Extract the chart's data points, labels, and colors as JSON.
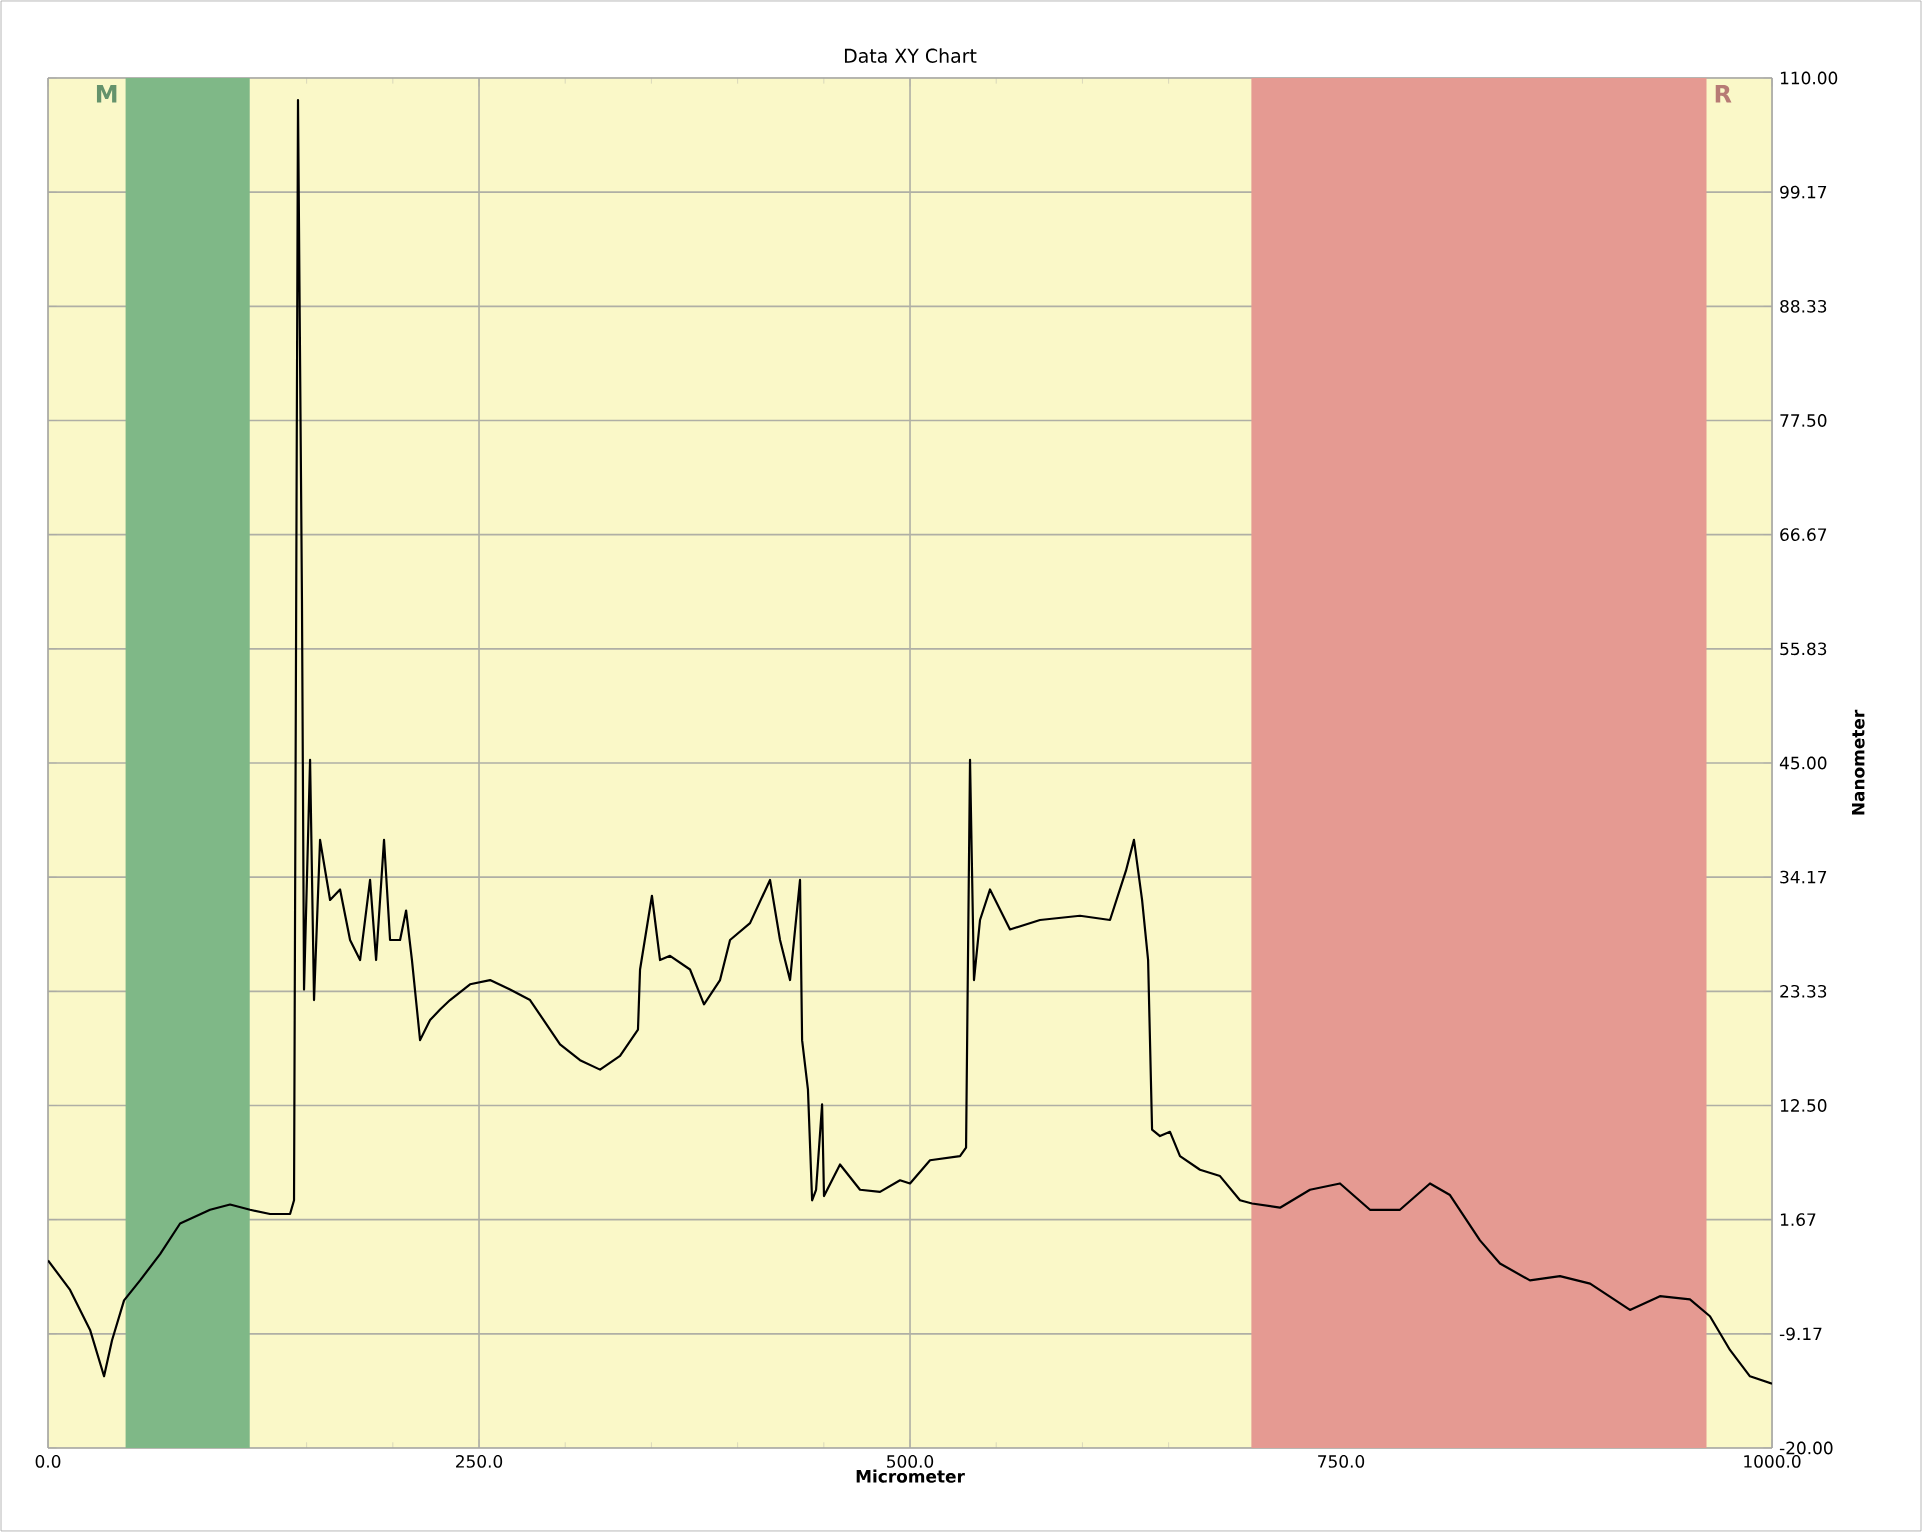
{
  "chart_data": {
    "type": "line",
    "title": "Data XY Chart",
    "xlabel": "Micrometer",
    "ylabel": "Nanometer",
    "xlim": [
      0,
      1000
    ],
    "ylim": [
      -20,
      110
    ],
    "xticks": [
      {
        "value": 0,
        "label": "0.0"
      },
      {
        "value": 250,
        "label": "250.0"
      },
      {
        "value": 500,
        "label": "500.0"
      },
      {
        "value": 750,
        "label": "750.0"
      },
      {
        "value": 1000,
        "label": "1000.0"
      }
    ],
    "yticks": [
      {
        "value": -20,
        "label": "-20.00"
      },
      {
        "value": -9.17,
        "label": "-9.17"
      },
      {
        "value": 1.67,
        "label": "1.67"
      },
      {
        "value": 12.5,
        "label": "12.50"
      },
      {
        "value": 23.33,
        "label": "23.33"
      },
      {
        "value": 34.17,
        "label": "34.17"
      },
      {
        "value": 45,
        "label": "45.00"
      },
      {
        "value": 55.83,
        "label": "55.83"
      },
      {
        "value": 66.67,
        "label": "66.67"
      },
      {
        "value": 77.5,
        "label": "77.50"
      },
      {
        "value": 88.33,
        "label": "88.33"
      },
      {
        "value": 99.17,
        "label": "99.17"
      },
      {
        "value": 110,
        "label": "110.00"
      }
    ],
    "grid": true,
    "marker": "none",
    "line_style": "solid",
    "bands": [
      {
        "axis": "x",
        "from": 45,
        "to": 117,
        "label": "M",
        "color": "#7fb887"
      },
      {
        "axis": "x",
        "from": 698,
        "to": 962,
        "label": "R",
        "color": "#e59a92"
      }
    ],
    "series": [
      {
        "color": "#000000",
        "x": [
          0,
          12.8,
          24.4,
          32.5,
          37.1,
          44.1,
          53.4,
          65.0,
          76.6,
          94.0,
          105.6,
          117.2,
          128.8,
          140.4,
          142.7,
          145.0,
          147.3,
          148.5,
          152.0,
          154.3,
          157.8,
          163.6,
          169.4,
          175.2,
          181.0,
          186.8,
          190.3,
          194.9,
          198.4,
          204.2,
          207.7,
          211.1,
          215.8,
          221.6,
          227.4,
          233.2,
          244.8,
          256.4,
          268.0,
          279.6,
          297.0,
          308.6,
          320.2,
          331.8,
          342.2,
          343.4,
          350.3,
          355.0,
          360.8,
          372.4,
          380.5,
          389.8,
          395.6,
          407.2,
          418.8,
          424.6,
          430.4,
          436.2,
          437.4,
          440.8,
          443.2,
          445.5,
          449.0,
          450.1,
          459.4,
          471.0,
          482.6,
          494.2,
          500.0,
          511.6,
          529.0,
          532.5,
          534.8,
          537.1,
          540.6,
          546.4,
          558.0,
          575.4,
          598.6,
          616.0,
          625.3,
          629.9,
          634.6,
          638.1,
          640.4,
          645.0,
          650.8,
          656.6,
          668.2,
          679.8,
          691.4,
          698.4,
          714.6,
          732.0,
          749.4,
          766.8,
          784.2,
          801.6,
          813.2,
          830.6,
          842.2,
          859.6,
          877.0,
          894.5,
          917.6,
          935.0,
          952.4,
          964.0,
          975.6,
          987.2,
          1000
        ],
        "values": [
          -2.2,
          -5.0,
          -8.8,
          -13.2,
          -9.8,
          -6.0,
          -4.1,
          -1.6,
          1.3,
          2.6,
          3.1,
          2.6,
          2.2,
          2.2,
          3.5,
          107.9,
          60.5,
          23.5,
          45.3,
          22.5,
          37.7,
          32.0,
          33.0,
          28.2,
          26.3,
          33.9,
          26.3,
          37.7,
          28.2,
          28.2,
          31.0,
          26.3,
          18.7,
          20.6,
          21.6,
          22.5,
          24.0,
          24.4,
          23.5,
          22.5,
          18.3,
          16.8,
          15.9,
          17.2,
          19.7,
          25.4,
          32.4,
          26.3,
          26.7,
          25.4,
          22.1,
          24.4,
          28.2,
          29.8,
          33.9,
          28.2,
          24.4,
          33.9,
          18.7,
          14.0,
          3.5,
          4.5,
          12.6,
          3.9,
          6.9,
          4.5,
          4.3,
          5.4,
          5.1,
          7.3,
          7.7,
          8.5,
          45.3,
          24.4,
          30.1,
          33.0,
          29.2,
          30.1,
          30.5,
          30.1,
          34.8,
          37.7,
          32.0,
          26.3,
          10.2,
          9.6,
          10.0,
          7.7,
          6.4,
          5.8,
          3.5,
          3.2,
          2.8,
          4.5,
          5.1,
          2.6,
          2.6,
          5.1,
          4.0,
          -0.3,
          -2.5,
          -4.1,
          -3.7,
          -4.4,
          -6.9,
          -5.6,
          -5.9,
          -7.5,
          -10.7,
          -13.2,
          -13.9
        ]
      }
    ]
  }
}
